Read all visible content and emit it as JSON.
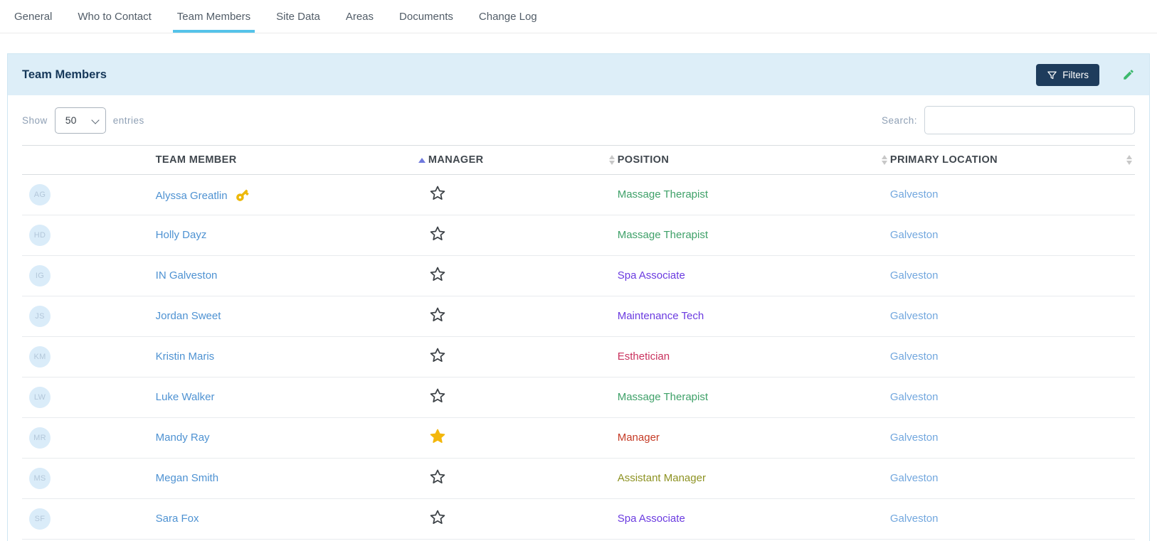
{
  "tab_bar": {
    "tabs": [
      {
        "label": "General",
        "active": false
      },
      {
        "label": "Who to Contact",
        "active": false
      },
      {
        "label": "Team Members",
        "active": true
      },
      {
        "label": "Site Data",
        "active": false
      },
      {
        "label": "Areas",
        "active": false
      },
      {
        "label": "Documents",
        "active": false
      },
      {
        "label": "Change Log",
        "active": false
      }
    ]
  },
  "panel": {
    "title": "Team Members",
    "filters_button_label": "Filters"
  },
  "controls": {
    "show_label": "Show",
    "entries_label": "entries",
    "page_size_options": [
      "50"
    ],
    "selected_page_size": "50",
    "search_label": "Search:",
    "search_value": ""
  },
  "table": {
    "columns": [
      {
        "key": "avatar",
        "label": "",
        "sort": null
      },
      {
        "key": "team-member",
        "label": "TEAM MEMBER",
        "sort": "asc"
      },
      {
        "key": "manager",
        "label": "MANAGER",
        "sort": "both"
      },
      {
        "key": "position",
        "label": "POSITION",
        "sort": "both"
      },
      {
        "key": "primary-location",
        "label": "PRIMARY LOCATION",
        "sort": "both"
      }
    ],
    "rows": [
      {
        "initials": "AG",
        "name": "Alyssa Greatlin",
        "has_key": true,
        "is_manager": false,
        "position": "Massage Therapist",
        "position_color": "#3fa169",
        "location": "Galveston"
      },
      {
        "initials": "HD",
        "name": "Holly Dayz",
        "has_key": false,
        "is_manager": false,
        "position": "Massage Therapist",
        "position_color": "#3fa169",
        "location": "Galveston"
      },
      {
        "initials": "IG",
        "name": "IN Galveston",
        "has_key": false,
        "is_manager": false,
        "position": "Spa Associate",
        "position_color": "#6b3be0",
        "location": "Galveston"
      },
      {
        "initials": "JS",
        "name": "Jordan Sweet",
        "has_key": false,
        "is_manager": false,
        "position": "Maintenance Tech",
        "position_color": "#6b3be0",
        "location": "Galveston"
      },
      {
        "initials": "KM",
        "name": "Kristin Maris",
        "has_key": false,
        "is_manager": false,
        "position": "Esthetician",
        "position_color": "#c9325e",
        "location": "Galveston"
      },
      {
        "initials": "LW",
        "name": "Luke Walker",
        "has_key": false,
        "is_manager": false,
        "position": "Massage Therapist",
        "position_color": "#3fa169",
        "location": "Galveston"
      },
      {
        "initials": "MR",
        "name": "Mandy Ray",
        "has_key": false,
        "is_manager": true,
        "position": "Manager",
        "position_color": "#c53b26",
        "location": "Galveston"
      },
      {
        "initials": "MS",
        "name": "Megan Smith",
        "has_key": false,
        "is_manager": false,
        "position": "Assistant Manager",
        "position_color": "#8d9222",
        "location": "Galveston"
      },
      {
        "initials": "SF",
        "name": "Sara Fox",
        "has_key": false,
        "is_manager": false,
        "position": "Spa Associate",
        "position_color": "#6b3be0",
        "location": "Galveston"
      }
    ]
  },
  "colors": {
    "tab_text": "#525d68",
    "tab_underline": "#55c3e9",
    "panel_border": "#cfe6f2",
    "panel_header_bg": "#ddeef8",
    "title_navy": "#16385a",
    "filters_btn_bg": "#1e3c5c",
    "edit_green": "#3cb96d",
    "link_blue": "#4e92d2",
    "location_blue": "#72a7de",
    "label_gray": "#8fa0b5",
    "header_text": "#40474e",
    "header_border": "#d9dde0",
    "row_border": "#e8ebee",
    "avatar_bg": "#daecf9",
    "avatar_text": "#b3c7da",
    "star_gold": "#f3b70c",
    "star_outline": "#3b4045",
    "key_gold": "#edb80a",
    "sort_active": "#6f79dd",
    "sort_inactive": "#c7c7c7"
  }
}
